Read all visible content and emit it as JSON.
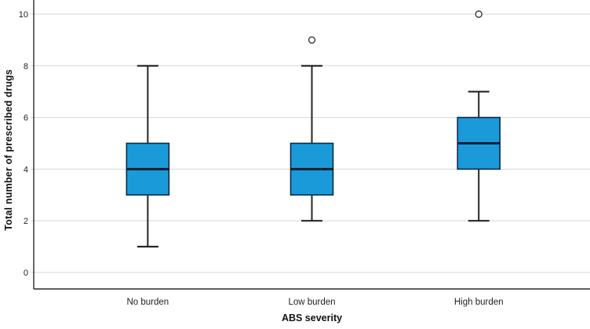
{
  "chart_data": {
    "type": "boxplot",
    "title": "",
    "xlabel": "ABS severity",
    "ylabel": "Total number of prescribed drugs",
    "categories": [
      "No burden",
      "Low burden",
      "High burden"
    ],
    "ylim": [
      0,
      10
    ],
    "yticks": [
      0,
      2,
      4,
      6,
      8,
      10
    ],
    "grid": "horizontal",
    "legend": "none",
    "series": [
      {
        "category": "No burden",
        "whisker_low": 1,
        "q1": 3,
        "median": 4,
        "q3": 5,
        "whisker_high": 8,
        "outliers": []
      },
      {
        "category": "Low burden",
        "whisker_low": 2,
        "q1": 3,
        "median": 4,
        "q3": 5,
        "whisker_high": 8,
        "outliers": [
          9
        ]
      },
      {
        "category": "High burden",
        "whisker_low": 2,
        "q1": 4,
        "median": 5,
        "q3": 6,
        "whisker_high": 7,
        "outliers": [
          10
        ]
      }
    ],
    "colors": {
      "box_fill": "#1b9ad9",
      "box_border": "#0e2947",
      "median": "#0a1c33",
      "whisker": "#262626",
      "grid": "#d6d6d6",
      "axis": "#2a2a2a",
      "outlier_stroke": "#3a3a3a",
      "tick_label": "#1f1f1f",
      "background": "#ffffff"
    }
  }
}
